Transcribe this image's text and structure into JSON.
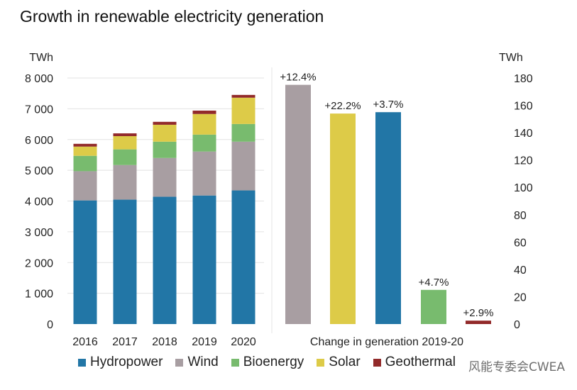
{
  "chart_data": [
    {
      "type": "bar",
      "stacked": true,
      "title": "Growth in renewable electricity generation",
      "ylabel": "TWh",
      "ylim": [
        0,
        8000
      ],
      "yticks": [
        0,
        1000,
        2000,
        3000,
        4000,
        5000,
        6000,
        7000,
        8000
      ],
      "ytick_labels": [
        "0",
        "1 000",
        "2 000",
        "3 000",
        "4 000",
        "5 000",
        "6 000",
        "7 000",
        "8 000"
      ],
      "grid": true,
      "categories": [
        "2016",
        "2017",
        "2018",
        "2019",
        "2020"
      ],
      "series": [
        {
          "name": "Hydropower",
          "color": "#2276a6",
          "values": [
            4020,
            4045,
            4140,
            4180,
            4345
          ]
        },
        {
          "name": "Wind",
          "color": "#a89ea2",
          "values": [
            950,
            1125,
            1260,
            1430,
            1585
          ]
        },
        {
          "name": "Bioenergy",
          "color": "#78bb6e",
          "values": [
            500,
            510,
            530,
            550,
            575
          ]
        },
        {
          "name": "Solar",
          "color": "#ddcb48",
          "values": [
            300,
            430,
            550,
            670,
            855
          ]
        },
        {
          "name": "Geothermal",
          "color": "#922a2a",
          "values": [
            90,
            90,
            95,
            110,
            90
          ]
        }
      ]
    },
    {
      "type": "bar",
      "xlabel": "Change in generation 2019-20",
      "ylabel": "TWh",
      "ylim": [
        0,
        180
      ],
      "yticks": [
        0,
        20,
        40,
        60,
        80,
        100,
        120,
        140,
        160,
        180
      ],
      "categories": [
        "Wind",
        "Solar",
        "Hydropower",
        "Bioenergy",
        "Geothermal"
      ],
      "colors": [
        "#a89ea2",
        "#ddcb48",
        "#2276a6",
        "#78bb6e",
        "#922a2a"
      ],
      "values": [
        175,
        154,
        155,
        25,
        2.5
      ],
      "data_labels": [
        "+12.4%",
        "+22.2%",
        "+3.7%",
        "+4.7%",
        "+2.9%"
      ]
    }
  ],
  "legend": [
    {
      "label": "Hydropower",
      "color": "#2276a6"
    },
    {
      "label": "Wind",
      "color": "#a89ea2"
    },
    {
      "label": "Bioenergy",
      "color": "#78bb6e"
    },
    {
      "label": "Solar",
      "color": "#ddcb48"
    },
    {
      "label": "Geothermal",
      "color": "#922a2a"
    }
  ],
  "watermark": "风能专委会CWEA"
}
